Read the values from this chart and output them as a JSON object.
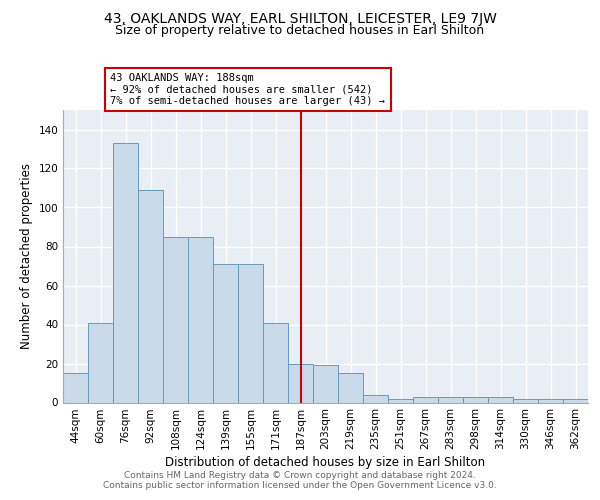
{
  "title1": "43, OAKLANDS WAY, EARL SHILTON, LEICESTER, LE9 7JW",
  "title2": "Size of property relative to detached houses in Earl Shilton",
  "xlabel": "Distribution of detached houses by size in Earl Shilton",
  "ylabel": "Number of detached properties",
  "footer1": "Contains HM Land Registry data © Crown copyright and database right 2024.",
  "footer2": "Contains public sector information licensed under the Open Government Licence v3.0.",
  "categories": [
    "44sqm",
    "60sqm",
    "76sqm",
    "92sqm",
    "108sqm",
    "124sqm",
    "139sqm",
    "155sqm",
    "171sqm",
    "187sqm",
    "203sqm",
    "219sqm",
    "235sqm",
    "251sqm",
    "267sqm",
    "283sqm",
    "298sqm",
    "314sqm",
    "330sqm",
    "346sqm",
    "362sqm"
  ],
  "values": [
    15,
    41,
    133,
    109,
    85,
    85,
    71,
    71,
    41,
    20,
    19,
    15,
    4,
    2,
    3,
    3,
    3,
    3,
    2,
    2,
    2
  ],
  "bar_color": "#c9daea",
  "bar_edge_color": "#6699bb",
  "vline_x_idx": 9,
  "vline_label": "43 OAKLANDS WAY: 188sqm",
  "annotation_line1": "← 92% of detached houses are smaller (542)",
  "annotation_line2": "7% of semi-detached houses are larger (43) →",
  "annotation_box_color": "#cc0000",
  "vline_color": "#cc0000",
  "ylim": [
    0,
    150
  ],
  "yticks": [
    0,
    20,
    40,
    60,
    80,
    100,
    120,
    140
  ],
  "background_color": "#e8eef4",
  "grid_color": "#ffffff",
  "title1_fontsize": 10,
  "title2_fontsize": 9,
  "xlabel_fontsize": 8.5,
  "ylabel_fontsize": 8.5,
  "tick_fontsize": 7.5,
  "footer_fontsize": 6.5
}
